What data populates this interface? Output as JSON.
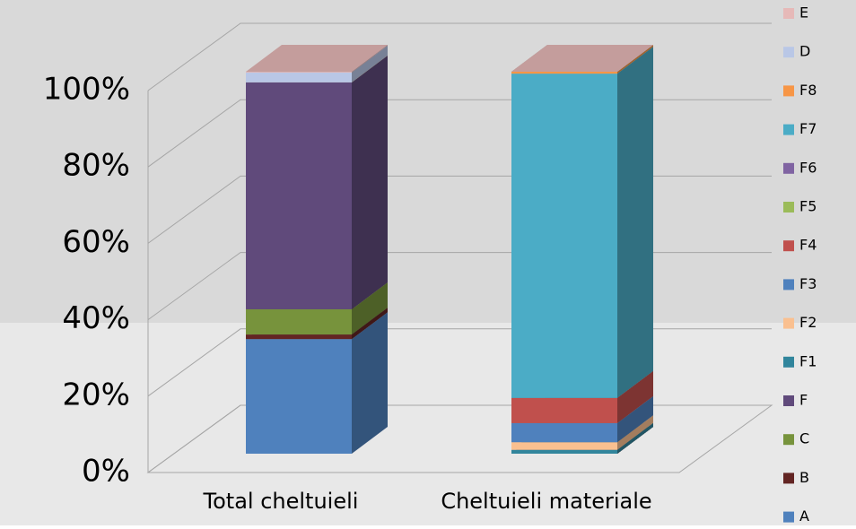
{
  "chart_data": {
    "type": "bar3d_stacked_percent",
    "categories": [
      "Total cheltuieli",
      "Cheltuieli materiale"
    ],
    "series": [
      {
        "name": "A",
        "color": "#4f81bd",
        "values": [
          30,
          0
        ]
      },
      {
        "name": "B",
        "color": "#632523",
        "values": [
          1.2,
          0
        ]
      },
      {
        "name": "C",
        "color": "#77933c",
        "values": [
          6.6,
          0
        ]
      },
      {
        "name": "F",
        "color": "#604a7b",
        "values": [
          59.4,
          0
        ]
      },
      {
        "name": "F1",
        "color": "#31859c",
        "values": [
          0,
          1
        ]
      },
      {
        "name": "F2",
        "color": "#fac090",
        "values": [
          0,
          2
        ]
      },
      {
        "name": "F3",
        "color": "#4f81bd",
        "values": [
          0,
          5
        ]
      },
      {
        "name": "F4",
        "color": "#c0504d",
        "values": [
          0,
          6.6
        ]
      },
      {
        "name": "F5",
        "color": "#9bbb59",
        "values": [
          0,
          0
        ]
      },
      {
        "name": "F6",
        "color": "#8064a2",
        "values": [
          0,
          0
        ]
      },
      {
        "name": "F7",
        "color": "#4bacc6",
        "values": [
          0,
          84.9
        ]
      },
      {
        "name": "F8",
        "color": "#f79646",
        "values": [
          0,
          0.5
        ]
      },
      {
        "name": "D",
        "color": "#b9c7e6",
        "values": [
          2.6,
          0
        ]
      },
      {
        "name": "E",
        "color": "#e6b9b8",
        "values": [
          0.2,
          0
        ]
      }
    ],
    "ylim": [
      0,
      100
    ],
    "yticks": [
      {
        "value": 0,
        "label": "0%"
      },
      {
        "value": 20,
        "label": "20%"
      },
      {
        "value": 40,
        "label": "40%"
      },
      {
        "value": 60,
        "label": "60%"
      },
      {
        "value": 80,
        "label": "80%"
      },
      {
        "value": 100,
        "label": "100%"
      }
    ],
    "grid": true
  }
}
